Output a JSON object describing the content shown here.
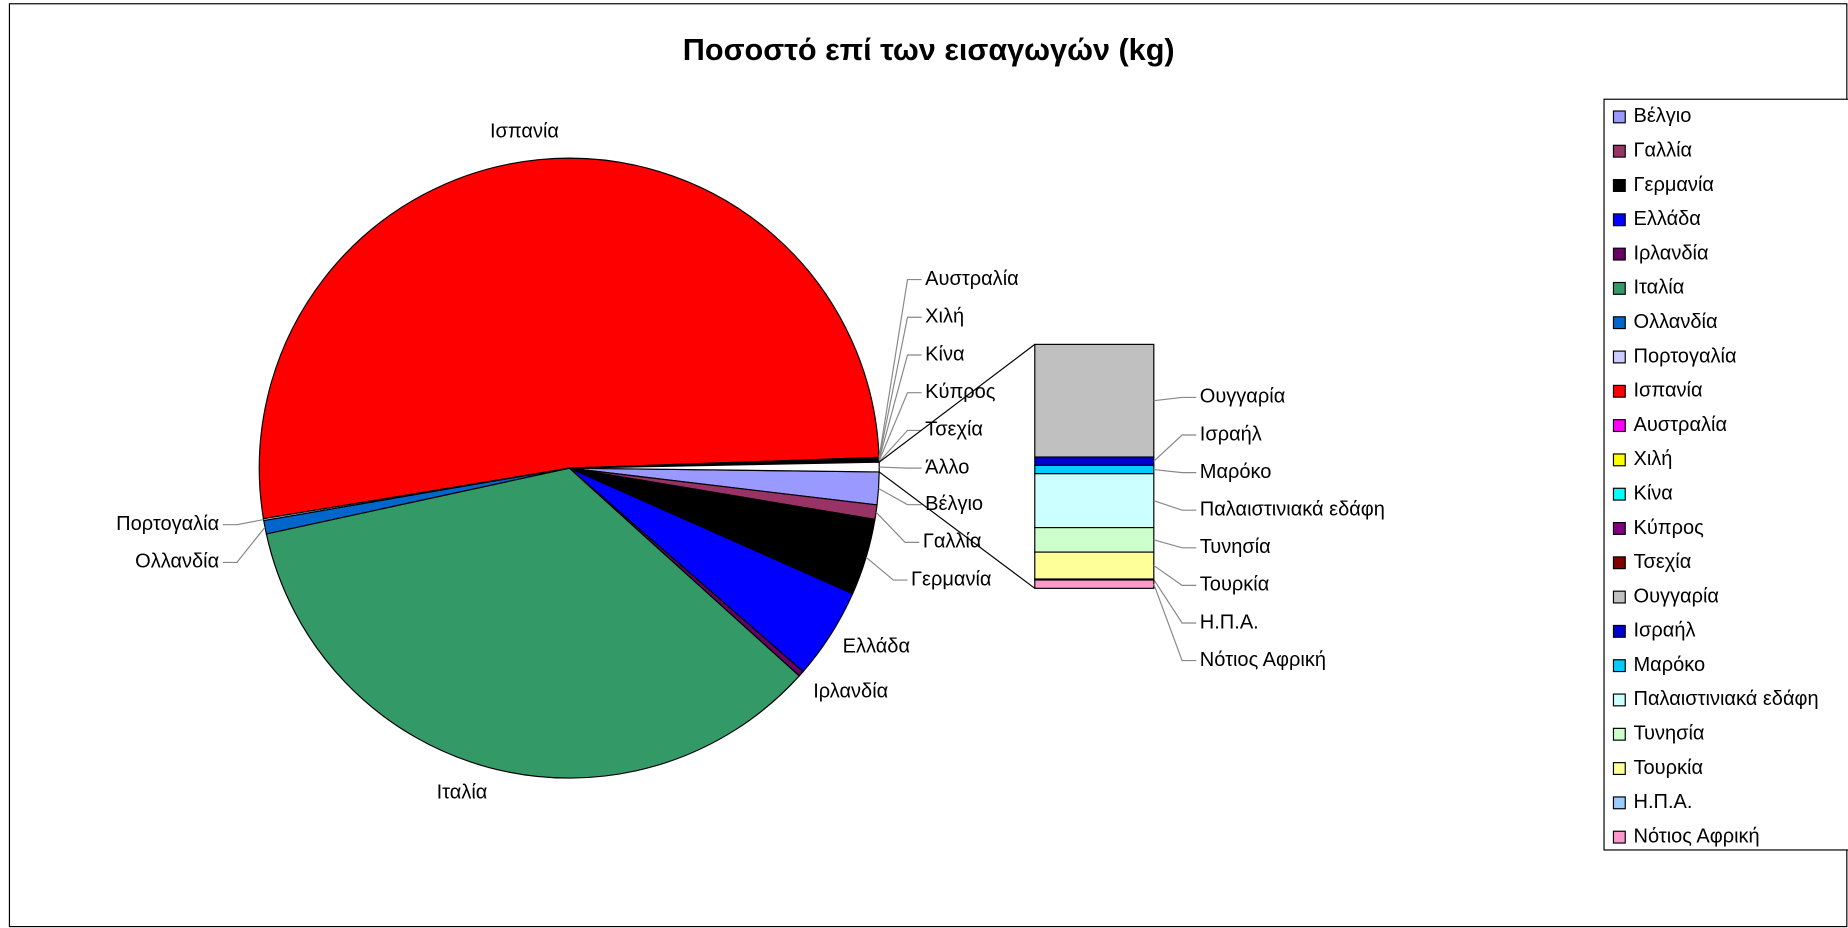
{
  "chart_data": {
    "type": "pie-of-bar",
    "title": "Ποσοστό επί των εισαγωγών (kg)",
    "categories": [
      "Βέλγιο",
      "Γαλλία",
      "Γερμανία",
      "Ελλάδα",
      "Ιρλανδία",
      "Ιταλία",
      "Ολλανδία",
      "Πορτογαλία",
      "Ισπανία",
      "Αυστραλία",
      "Χιλή",
      "Κίνα",
      "Κύπρος",
      "Τσεχία"
    ],
    "values": [
      1.7,
      0.75,
      4.0,
      4.75,
      0.3,
      34.9,
      0.7,
      0.1,
      52.05,
      0.05,
      0.05,
      0.05,
      0.05,
      0.05
    ],
    "colors": [
      "#9999ff",
      "#993366",
      "#000000",
      "#0000ff",
      "#660066",
      "#339966",
      "#0066cc",
      "#ccccff",
      "#ff0000",
      "#ff00ff",
      "#ffff00",
      "#00ffff",
      "#800080",
      "#800000"
    ],
    "other": {
      "label": "Άλλο",
      "categories": [
        "Ουγγαρία",
        "Ισραήλ",
        "Μαρόκο",
        "Παλαιστινιακά εδάφη",
        "Τυνησία",
        "Τουρκία",
        "Η.Π.Α.",
        "Νότιος Αφρική"
      ],
      "values": [
        0.23,
        0.017,
        0.017,
        0.11,
        0.05,
        0.055,
        0.002,
        0.017
      ],
      "colors": [
        "#c0c0c0",
        "#0000cc",
        "#00ccff",
        "#ccffff",
        "#ccffcc",
        "#ffff99",
        "#99ccff",
        "#ff99cc"
      ]
    },
    "legend": "right"
  }
}
